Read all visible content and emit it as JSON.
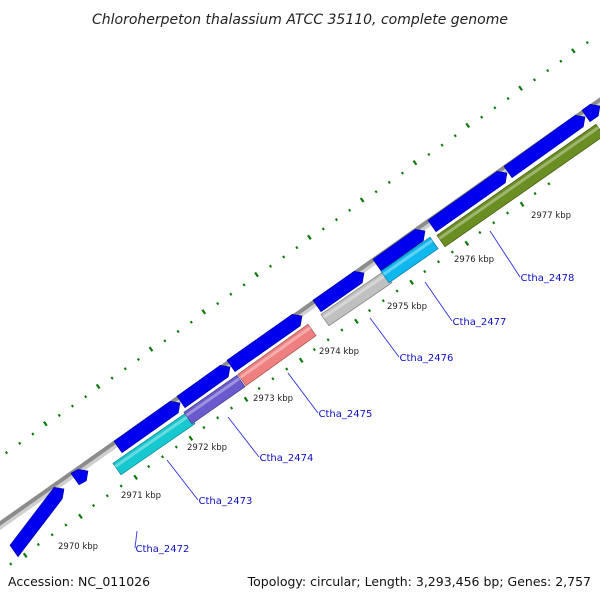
{
  "title": "Chloroherpeton thalassium ATCC 35110, complete genome",
  "accession": "Accession: NC_011026",
  "summary": "Topology: circular; Length: 3,293,456 bp; Genes: 2,757",
  "colors": {
    "backbone": "#8c8c8c",
    "forward_gene": "#0000ee",
    "tick": "#0a7a0a",
    "gene_label": "#1010c0",
    "callout_line": "#3030e0"
  },
  "forward_genes": [
    {
      "index": 0
    },
    {
      "index": 1
    },
    {
      "index": 2
    },
    {
      "index": 3
    },
    {
      "index": 4
    },
    {
      "index": 5
    },
    {
      "index": 6
    },
    {
      "index": 7
    },
    {
      "index": 8
    },
    {
      "index": 9
    }
  ],
  "kbp_labels": [
    {
      "text": "2970 kbp"
    },
    {
      "text": "2971 kbp"
    },
    {
      "text": "2972 kbp"
    },
    {
      "text": "2973 kbp"
    },
    {
      "text": "2974 kbp"
    },
    {
      "text": "2975 kbp"
    },
    {
      "text": "2976 kbp"
    },
    {
      "text": "2977 kbp"
    }
  ],
  "reverse_genes": [
    {
      "label": "Ctha_2472",
      "color": "#0000ee"
    },
    {
      "label": "Ctha_2473",
      "color": "#18c8d0"
    },
    {
      "label": "Ctha_2474",
      "color": "#6a5acd"
    },
    {
      "label": "Ctha_2475",
      "color": "#f08080"
    },
    {
      "label": "Ctha_2476",
      "color": "#c0c0c0"
    },
    {
      "label": "Ctha_2477",
      "color": "#10b8f0"
    },
    {
      "label": "Ctha_2478",
      "color": "#6b8e23"
    }
  ]
}
